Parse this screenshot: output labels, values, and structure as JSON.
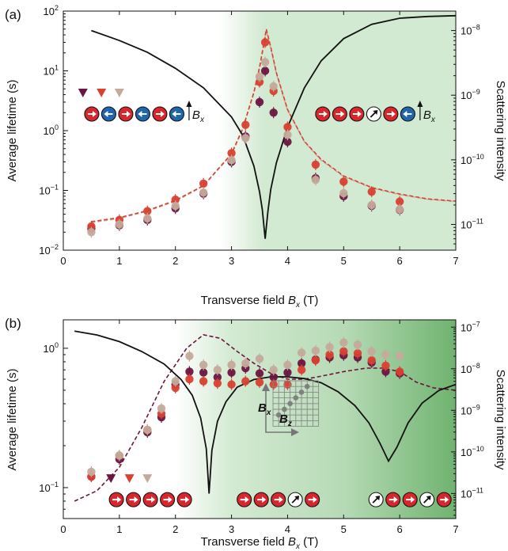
{
  "colors": {
    "series_dark": "#6b1540",
    "series_red": "#d94032",
    "series_tan": "#c4aa9a",
    "left_axis": "#a8295f",
    "green_light": "#d3ead2",
    "green_dark": "#6fb36f",
    "spin_red": "#d8262d",
    "spin_blue": "#1f66ad",
    "black": "#111111"
  },
  "chart_data": [
    {
      "type": "scatter",
      "panel_label": "(a)",
      "xlabel": "Transverse field ",
      "xlabel_var": "B",
      "xlabel_sub": "x",
      "xlabel_unit": " (T)",
      "ylabel_left": "Average lifetime (s)",
      "ylabel_right": "Scattering intensity",
      "xlim": [
        0,
        7
      ],
      "ylim_left": [
        0.01,
        100
      ],
      "ylim_right": [
        4e-12,
        2e-08
      ],
      "yscale": "log",
      "x_ticks": [
        "0",
        "1",
        "2",
        "3",
        "4",
        "5",
        "6",
        "7"
      ],
      "left_ticks": [
        {
          "v": 0.01,
          "b": "10",
          "e": "−2"
        },
        {
          "v": 0.1,
          "b": "10",
          "e": "−1"
        },
        {
          "v": 1,
          "b": "10",
          "e": "0"
        },
        {
          "v": 10,
          "b": "10",
          "e": "1"
        },
        {
          "v": 100,
          "b": "10",
          "e": "2"
        }
      ],
      "right_ticks": [
        {
          "v": 1e-11,
          "b": "10",
          "e": "−11"
        },
        {
          "v": 1e-10,
          "b": "10",
          "e": "−10"
        },
        {
          "v": 1e-09,
          "b": "10",
          "e": "−9"
        },
        {
          "v": 1e-08,
          "b": "10",
          "e": "−8"
        }
      ],
      "background": {
        "fade_start": 2.8,
        "fade_end": 3.55
      },
      "series": [
        {
          "color_key": "series_dark",
          "x": [
            0.5,
            1.0,
            1.5,
            2.0,
            2.5,
            3.0,
            3.25,
            3.5,
            3.6,
            3.75,
            4.0,
            4.5,
            5.0,
            5.5,
            6.0
          ],
          "y": [
            0.023,
            0.026,
            0.032,
            0.05,
            0.088,
            0.3,
            0.8,
            3.0,
            10.0,
            2.0,
            0.65,
            0.16,
            0.08,
            0.055,
            0.047
          ]
        },
        {
          "color_key": "series_red",
          "x": [
            0.5,
            1.0,
            1.5,
            2.0,
            2.5,
            3.0,
            3.25,
            3.5,
            3.6,
            3.75,
            4.0,
            4.5,
            5.0,
            5.5,
            6.0
          ],
          "y": [
            0.025,
            0.032,
            0.045,
            0.07,
            0.13,
            0.42,
            1.25,
            6.5,
            30.0,
            4.6,
            1.15,
            0.27,
            0.14,
            0.095,
            0.065
          ]
        },
        {
          "color_key": "series_tan",
          "x": [
            0.5,
            1.0,
            1.5,
            2.0,
            2.5,
            3.0,
            3.25,
            3.5,
            3.6,
            3.75,
            4.0,
            4.5,
            5.0,
            5.5,
            6.0
          ],
          "y": [
            0.02,
            0.027,
            0.034,
            0.055,
            0.092,
            0.32,
            0.75,
            8.0,
            14.0,
            5.5,
            0.85,
            0.15,
            0.09,
            0.057,
            0.048
          ]
        }
      ],
      "fit_curves": [
        {
          "color_key": "series_tan",
          "x": [
            0.5,
            1.0,
            1.5,
            2.0,
            2.5,
            3.0,
            3.2,
            3.4,
            3.5,
            3.58,
            3.62,
            3.7,
            3.8,
            4.0,
            4.3,
            4.6,
            5.0,
            5.5,
            6.0,
            6.5,
            7.0
          ],
          "y": [
            0.029,
            0.034,
            0.045,
            0.066,
            0.118,
            0.4,
            1.05,
            4.3,
            11.0,
            28.0,
            47.0,
            24.0,
            9.0,
            2.2,
            0.65,
            0.32,
            0.17,
            0.11,
            0.085,
            0.071,
            0.065
          ]
        },
        {
          "color_key": "series_red",
          "x": [
            0.5,
            1.0,
            1.5,
            2.0,
            2.5,
            3.0,
            3.2,
            3.4,
            3.5,
            3.58,
            3.62,
            3.7,
            3.8,
            4.0,
            4.3,
            4.6,
            5.0,
            5.5,
            6.0,
            6.5,
            7.0
          ],
          "y": [
            0.03,
            0.035,
            0.046,
            0.068,
            0.12,
            0.41,
            1.08,
            4.4,
            11.5,
            30.0,
            50.0,
            25.0,
            9.3,
            2.25,
            0.66,
            0.33,
            0.175,
            0.112,
            0.087,
            0.072,
            0.066
          ]
        }
      ],
      "intensity_curve": {
        "x": [
          0.5,
          1.0,
          1.5,
          2.0,
          2.5,
          3.0,
          3.2,
          3.4,
          3.5,
          3.55,
          3.6,
          3.65,
          3.7,
          3.8,
          4.0,
          4.3,
          4.6,
          5.0,
          5.5,
          6.0,
          6.5,
          7.0
        ],
        "y": [
          1e-08,
          7e-09,
          4.6e-09,
          2.6e-09,
          1.3e-09,
          4.6e-10,
          2.4e-10,
          8e-11,
          3.2e-11,
          1.7e-11,
          6e-12,
          1.6e-11,
          3.5e-11,
          9e-11,
          3.2e-10,
          1.3e-09,
          3.4e-09,
          7.5e-09,
          1.25e-08,
          1.55e-08,
          1.65e-08,
          1.7e-08
        ]
      },
      "legend_markers": [
        {
          "x": 0.35,
          "color_key": "series_dark"
        },
        {
          "x": 0.68,
          "color_key": "series_red"
        },
        {
          "x": 1.0,
          "color_key": "series_tan"
        }
      ],
      "insets": [
        {
          "x": 0.38,
          "y": 0.4,
          "spins": [
            "right",
            "left",
            "right",
            "left",
            "right",
            "left"
          ],
          "label_var": "B",
          "label_sub": "x"
        },
        {
          "x": 4.5,
          "y": 0.4,
          "spins": [
            "right",
            "right",
            "right",
            "white",
            "right",
            "left"
          ],
          "label_var": "B",
          "label_sub": "x"
        }
      ]
    },
    {
      "type": "scatter",
      "panel_label": "(b)",
      "xlabel": "Transverse field ",
      "xlabel_var": "B",
      "xlabel_sub": "x",
      "xlabel_unit": " (T)",
      "ylabel_left": "Average lifetime (s)",
      "ylabel_right": "Scattering intensity",
      "xlim": [
        0,
        7
      ],
      "ylim_left": [
        0.06,
        1.6
      ],
      "ylim_right": [
        2.5e-12,
        1.5e-07
      ],
      "yscale": "log",
      "x_ticks": [
        "0",
        "1",
        "2",
        "3",
        "4",
        "5",
        "6",
        "7"
      ],
      "left_ticks": [
        {
          "v": 0.1,
          "b": "10",
          "e": "−1"
        },
        {
          "v": 1,
          "b": "10",
          "e": "0"
        }
      ],
      "right_ticks": [
        {
          "v": 1e-11,
          "b": "10",
          "e": "−11"
        },
        {
          "v": 1e-10,
          "b": "10",
          "e": "−10"
        },
        {
          "v": 1e-09,
          "b": "10",
          "e": "−9"
        },
        {
          "v": 1e-08,
          "b": "10",
          "e": "−8"
        },
        {
          "v": 1e-07,
          "b": "10",
          "e": "−7"
        }
      ],
      "background": {
        "fade_start": 2.0,
        "fade_end": 3.0,
        "dark_start": 5.0
      },
      "series": [
        {
          "color_key": "series_dark",
          "x": [
            0.5,
            1.0,
            1.5,
            1.75,
            2.0,
            2.25,
            2.5,
            2.75,
            3.0,
            3.25,
            3.5,
            3.75,
            4.0,
            4.25,
            4.5,
            4.75,
            5.0,
            5.25,
            5.5,
            5.75,
            6.0
          ],
          "y": [
            0.12,
            0.16,
            0.25,
            0.32,
            0.55,
            0.68,
            0.67,
            0.62,
            0.67,
            0.72,
            0.66,
            0.62,
            0.67,
            0.78,
            0.83,
            0.86,
            0.89,
            0.86,
            0.79,
            0.68,
            0.66
          ]
        },
        {
          "color_key": "series_red",
          "x": [
            0.5,
            1.0,
            1.5,
            1.75,
            2.0,
            2.25,
            2.5,
            2.75,
            3.0,
            3.25,
            3.5,
            3.75,
            4.0,
            4.25,
            4.5,
            4.75,
            5.0,
            5.25,
            5.5,
            5.75,
            6.0
          ],
          "y": [
            0.12,
            0.17,
            0.26,
            0.34,
            0.52,
            0.6,
            0.58,
            0.56,
            0.55,
            0.58,
            0.57,
            0.55,
            0.55,
            0.7,
            0.82,
            0.9,
            0.95,
            0.92,
            0.82,
            0.75,
            0.68
          ]
        },
        {
          "color_key": "series_tan",
          "x": [
            0.5,
            1.0,
            1.5,
            1.75,
            2.0,
            2.25,
            2.5,
            2.75,
            3.0,
            3.25,
            3.5,
            3.75,
            4.0,
            4.25,
            4.5,
            4.75,
            5.0,
            5.25,
            5.5,
            5.75,
            6.0
          ],
          "y": [
            0.13,
            0.17,
            0.26,
            0.37,
            0.58,
            0.88,
            0.76,
            0.7,
            0.76,
            0.78,
            0.84,
            0.7,
            0.76,
            0.93,
            0.96,
            1.02,
            1.1,
            1.06,
            0.95,
            0.9,
            0.88
          ]
        }
      ],
      "fit_curves": [
        {
          "color_key": "series_dark",
          "x": [
            0.2,
            0.6,
            1.0,
            1.4,
            1.8,
            2.2,
            2.5,
            2.8,
            3.1,
            3.4,
            3.7,
            4.0,
            4.3,
            4.6,
            5.0,
            5.4,
            5.7,
            6.0,
            6.3,
            6.6,
            7.0
          ],
          "y": [
            0.08,
            0.095,
            0.14,
            0.27,
            0.58,
            1.0,
            1.25,
            1.18,
            0.95,
            0.78,
            0.66,
            0.6,
            0.6,
            0.63,
            0.68,
            0.72,
            0.72,
            0.68,
            0.57,
            0.52,
            0.5
          ]
        }
      ],
      "intensity_curve": {
        "x": [
          0.2,
          0.6,
          1.0,
          1.4,
          1.8,
          2.1,
          2.3,
          2.45,
          2.55,
          2.6,
          2.65,
          2.75,
          2.9,
          3.1,
          3.4,
          3.7,
          4.0,
          4.3,
          4.6,
          4.9,
          5.2,
          5.45,
          5.65,
          5.8,
          5.95,
          6.15,
          6.4,
          6.7,
          7.0
        ],
        "y": [
          8e-08,
          6.5e-08,
          4.5e-08,
          2.6e-08,
          1.3e-08,
          5.5e-09,
          2.3e-09,
          6.5e-10,
          1.2e-10,
          1e-11,
          1.1e-10,
          5.5e-10,
          1.6e-09,
          3.6e-09,
          5.5e-09,
          6.4e-09,
          6.4e-09,
          5.8e-09,
          4.6e-09,
          2.8e-09,
          1.3e-09,
          5e-10,
          1.6e-10,
          6e-11,
          1.3e-10,
          5e-10,
          1.5e-09,
          3e-09,
          4.2e-09
        ]
      },
      "legend_markers": [
        {
          "x": 0.85,
          "color_key": "series_dark"
        },
        {
          "x": 1.18,
          "color_key": "series_red"
        },
        {
          "x": 1.5,
          "color_key": "series_tan"
        }
      ],
      "insets": [
        {
          "x": 0.82,
          "y": 0.082,
          "spins": [
            "right",
            "right",
            "right",
            "right",
            "right"
          ]
        },
        {
          "x": 3.1,
          "y": 0.082,
          "spins": [
            "right",
            "right",
            "right",
            "white",
            "right"
          ]
        },
        {
          "x": 5.45,
          "y": 0.082,
          "spins": [
            "white",
            "right",
            "right",
            "white",
            "right"
          ]
        }
      ],
      "grid_inset": {
        "label_y_var": "B",
        "label_y_sub": "x",
        "label_x_var": "B",
        "label_x_sub": "z"
      }
    }
  ]
}
